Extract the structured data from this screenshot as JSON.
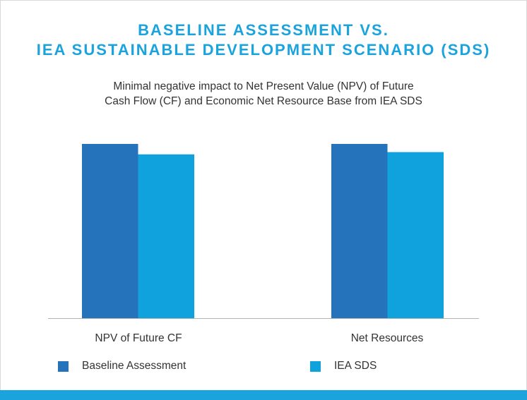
{
  "colors": {
    "title": "#1aa3dc",
    "baseline": "#2574bb",
    "iea_sds": "#0fa2dd",
    "text": "#333333",
    "axis": "#b3b3b3",
    "band": "#1aa3dc"
  },
  "chart_data": {
    "type": "bar",
    "title": [
      "BASELINE ASSESSMENT VS.",
      "IEA SUSTAINABLE DEVELOPMENT SCENARIO (SDS)"
    ],
    "subtitle": [
      "Minimal negative impact to Net Present Value (NPV) of Future",
      "Cash Flow (CF) and Economic Net Resource Base from IEA SDS"
    ],
    "categories": [
      "NPV of Future CF",
      "Net Resources"
    ],
    "series": [
      {
        "name": "Baseline Assessment",
        "color": "#2574bb",
        "values": [
          100,
          100
        ]
      },
      {
        "name": "IEA SDS",
        "color": "#0fa2dd",
        "values": [
          94.0,
          95.3
        ]
      }
    ],
    "ylim": [
      0,
      100
    ],
    "grid": false,
    "legend": "bottom",
    "xlabel": "",
    "ylabel": ""
  }
}
